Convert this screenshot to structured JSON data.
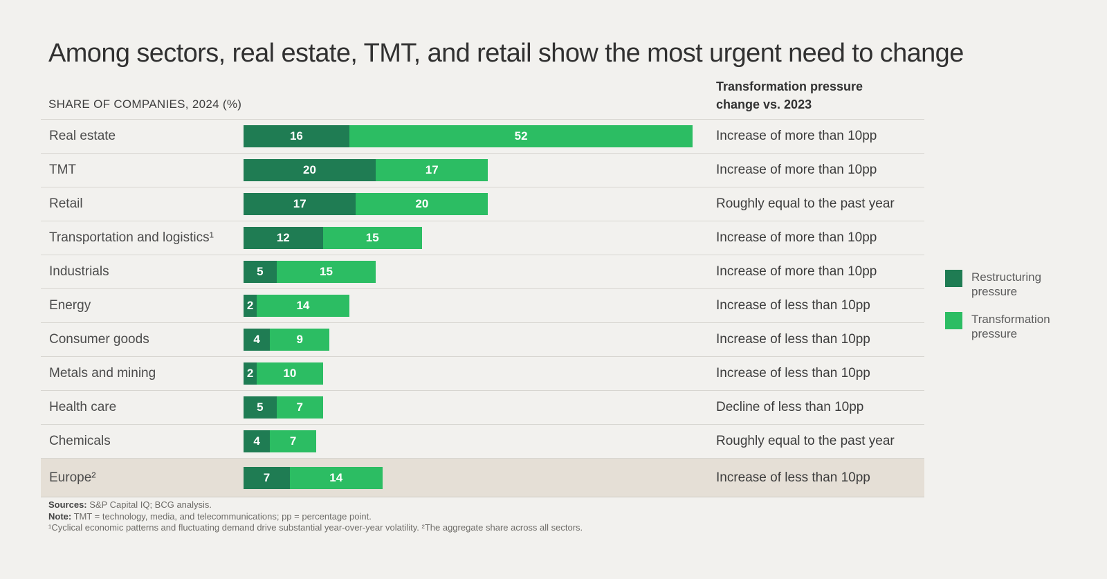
{
  "title": "Among sectors, real estate, TMT, and retail show the most urgent need to change",
  "left_header": "SHARE OF COMPANIES, 2024 (%)",
  "right_header": {
    "line1": "Transformation pressure",
    "line2": "change vs. 2023"
  },
  "colors": {
    "restructuring": "#1f7c53",
    "transformation": "#2cbd63",
    "highlight_row": "#e5dfd6",
    "background": "#f2f1ee"
  },
  "chart_data": {
    "type": "bar",
    "orientation": "horizontal",
    "stacked": true,
    "title": "SHARE OF COMPANIES, 2024 (%)",
    "categories": [
      "Real estate",
      "TMT",
      "Retail",
      "Transportation and logistics¹",
      "Industrials",
      "Energy",
      "Consumer goods",
      "Metals and mining",
      "Health care",
      "Chemicals",
      "Europe²"
    ],
    "series": [
      {
        "name": "Restructuring pressure",
        "color": "#1f7c53",
        "values": [
          16,
          20,
          17,
          12,
          5,
          2,
          4,
          2,
          5,
          4,
          7
        ]
      },
      {
        "name": "Transformation pressure",
        "color": "#2cbd63",
        "values": [
          52,
          17,
          20,
          15,
          15,
          14,
          9,
          10,
          7,
          7,
          14
        ]
      }
    ],
    "row_annotations": {
      "title": "Transformation pressure change vs. 2023",
      "values": [
        "Increase of more than 10pp",
        "Increase of more than 10pp",
        "Roughly equal to the past year",
        "Increase of more than 10pp",
        "Increase of more than 10pp",
        "Increase of less than 10pp",
        "Increase of less than 10pp",
        "Increase of less than 10pp",
        "Decline of less than 10pp",
        "Roughly equal to the past year",
        "Increase of less than 10pp"
      ]
    },
    "highlighted_category": "Europe²",
    "xlim": [
      0,
      68
    ],
    "data_labels": true
  },
  "legend": {
    "items": [
      {
        "label": "Restructuring pressure",
        "color": "#1f7c53"
      },
      {
        "label": "Transformation pressure",
        "color": "#2cbd63"
      }
    ]
  },
  "footer": {
    "sources_label": "Sources:",
    "sources_text": " S&P Capital IQ; BCG analysis.",
    "note_label": "Note:",
    "note_text": " TMT = technology, media, and telecommunications; pp = percentage point.",
    "footnotes": "¹Cyclical economic patterns and fluctuating demand drive substantial year-over-year volatility. ²The aggregate share across all sectors."
  }
}
